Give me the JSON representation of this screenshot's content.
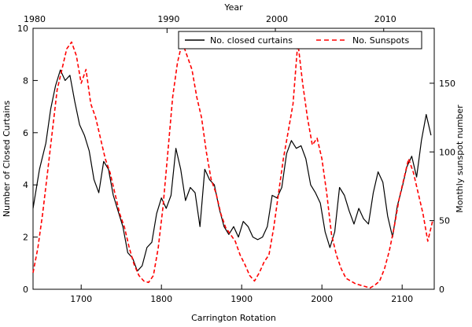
{
  "chart_data": {
    "type": "line",
    "title": "",
    "xlabel": "Carrington Rotation",
    "x2label": "Year",
    "ylabel": "Number of Closed Curtains",
    "y2label": "Monthly sunspot number",
    "xlim": [
      1640,
      2140
    ],
    "ylim": [
      0,
      10
    ],
    "y2lim": [
      0,
      190
    ],
    "x_ticks": [
      1700,
      1800,
      1900,
      2000,
      2100
    ],
    "x_tick_labels": [
      "1700",
      "1800",
      "1900",
      "2000",
      "2100"
    ],
    "x2_ticks": [
      1990,
      2000,
      2010
    ],
    "x2_tick_labels": [
      "1990",
      "2000",
      "2010"
    ],
    "x2_label_extras": [
      {
        "pos": 1640,
        "label": "1980"
      },
      {
        "pos": 1807,
        "label": "1990"
      }
    ],
    "y_ticks": [
      0,
      2,
      4,
      6,
      8,
      10
    ],
    "y2_ticks": [
      0,
      50,
      100,
      150
    ],
    "grid": false,
    "legend_position": "top-right",
    "series": [
      {
        "name": "No. closed curtains",
        "axis": "left",
        "color": "#000000",
        "style": "solid",
        "x": [
          1640,
          1648,
          1656,
          1662,
          1668,
          1674,
          1680,
          1686,
          1692,
          1698,
          1704,
          1710,
          1716,
          1722,
          1728,
          1734,
          1740,
          1746,
          1752,
          1758,
          1764,
          1770,
          1776,
          1782,
          1788,
          1794,
          1800,
          1806,
          1812,
          1818,
          1824,
          1830,
          1836,
          1842,
          1848,
          1854,
          1860,
          1866,
          1872,
          1878,
          1884,
          1890,
          1896,
          1902,
          1908,
          1914,
          1920,
          1926,
          1932,
          1938,
          1944,
          1950,
          1956,
          1962,
          1968,
          1974,
          1980,
          1986,
          1992,
          1998,
          2004,
          2010,
          2016,
          2022,
          2028,
          2034,
          2040,
          2046,
          2052,
          2058,
          2064,
          2070,
          2076,
          2082,
          2088,
          2094,
          2100,
          2106,
          2112,
          2118,
          2124,
          2130,
          2136
        ],
        "y": [
          3.1,
          4.6,
          5.6,
          6.9,
          7.8,
          8.4,
          8.0,
          8.2,
          7.2,
          6.3,
          5.9,
          5.3,
          4.2,
          3.7,
          4.9,
          4.6,
          3.6,
          3.0,
          2.4,
          1.4,
          1.2,
          0.7,
          0.9,
          1.6,
          1.8,
          2.9,
          3.5,
          3.1,
          3.6,
          5.4,
          4.6,
          3.4,
          3.9,
          3.7,
          2.4,
          4.6,
          4.2,
          4.0,
          3.1,
          2.4,
          2.1,
          2.4,
          2.0,
          2.6,
          2.4,
          2.0,
          1.9,
          2.0,
          2.4,
          3.6,
          3.5,
          3.9,
          5.2,
          5.7,
          5.4,
          5.5,
          5.0,
          4.0,
          3.7,
          3.3,
          2.2,
          1.6,
          2.2,
          3.9,
          3.6,
          3.0,
          2.5,
          3.1,
          2.7,
          2.5,
          3.7,
          4.5,
          4.1,
          2.8,
          2.0,
          3.2,
          3.9,
          4.7,
          5.1,
          4.3,
          5.7,
          6.7,
          5.9
        ]
      },
      {
        "name": "No. Sunspots",
        "axis": "right",
        "color": "#ff0000",
        "style": "dashed",
        "x": [
          1640,
          1646,
          1652,
          1658,
          1664,
          1670,
          1676,
          1682,
          1688,
          1694,
          1700,
          1706,
          1712,
          1718,
          1724,
          1730,
          1736,
          1742,
          1748,
          1754,
          1760,
          1766,
          1772,
          1778,
          1784,
          1790,
          1796,
          1802,
          1808,
          1814,
          1820,
          1826,
          1832,
          1838,
          1844,
          1850,
          1856,
          1862,
          1868,
          1874,
          1880,
          1886,
          1892,
          1898,
          1904,
          1910,
          1916,
          1922,
          1928,
          1934,
          1940,
          1946,
          1952,
          1958,
          1964,
          1970,
          1976,
          1982,
          1988,
          1994,
          2000,
          2006,
          2012,
          2018,
          2024,
          2030,
          2036,
          2042,
          2048,
          2054,
          2060,
          2066,
          2072,
          2078,
          2084,
          2090,
          2096,
          2102,
          2108,
          2114,
          2120,
          2126,
          2132,
          2138
        ],
        "y": [
          12,
          30,
          55,
          85,
          115,
          145,
          160,
          175,
          180,
          170,
          150,
          160,
          135,
          125,
          110,
          95,
          85,
          70,
          55,
          45,
          30,
          18,
          10,
          6,
          5,
          10,
          30,
          60,
          100,
          140,
          165,
          180,
          170,
          160,
          140,
          125,
          100,
          80,
          70,
          55,
          45,
          40,
          35,
          25,
          18,
          10,
          6,
          12,
          20,
          25,
          45,
          70,
          95,
          115,
          135,
          180,
          150,
          125,
          105,
          110,
          95,
          70,
          40,
          25,
          15,
          8,
          6,
          4,
          3,
          2,
          1,
          3,
          6,
          15,
          28,
          45,
          65,
          80,
          95,
          85,
          70,
          55,
          35,
          50
        ]
      }
    ]
  }
}
